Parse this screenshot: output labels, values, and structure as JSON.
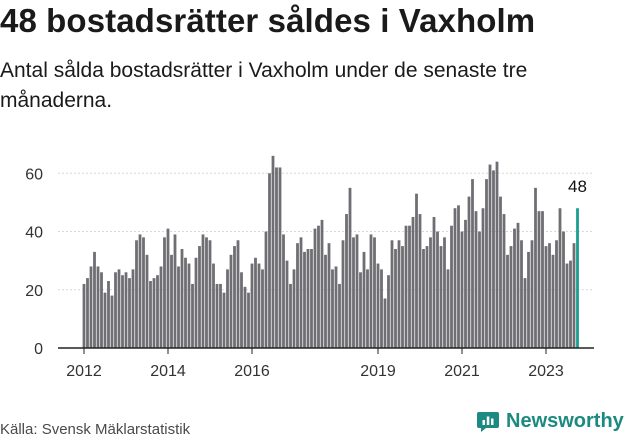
{
  "title": "48 bostadsrätter såldes i Vaxholm",
  "subtitle": "Antal sålda bostadsrätter i Vaxholm under de senaste tre månaderna.",
  "source": "Källa: Svensk Mäklarstatistik",
  "brand": {
    "name": "Newsworthy",
    "icon": "newsworthy-logo-icon"
  },
  "colors": {
    "bar": "#6f6e73",
    "highlight": "#1a9e8f",
    "grid": "#d8d8d8",
    "axis": "#222222"
  },
  "chart_data": {
    "type": "bar",
    "title": "48 bostadsrätter såldes i Vaxholm",
    "xlabel": "",
    "ylabel": "",
    "ylim": [
      0,
      68
    ],
    "yticks": [
      0,
      20,
      40,
      60
    ],
    "xticks": [
      {
        "label": "2012",
        "index": 0
      },
      {
        "label": "2014",
        "index": 24
      },
      {
        "label": "2016",
        "index": 48
      },
      {
        "label": "2019",
        "index": 84
      },
      {
        "label": "2021",
        "index": 108
      },
      {
        "label": "2023",
        "index": 132
      }
    ],
    "start": "2012-01",
    "period": "month",
    "values": [
      22,
      24,
      28,
      33,
      28,
      26,
      19,
      23,
      18,
      26,
      27,
      25,
      26,
      24,
      27,
      37,
      39,
      38,
      32,
      23,
      24,
      25,
      28,
      38,
      41,
      32,
      39,
      28,
      34,
      31,
      29,
      22,
      31,
      35,
      39,
      38,
      37,
      29,
      22,
      22,
      19,
      27,
      32,
      35,
      37,
      26,
      21,
      19,
      29,
      31,
      29,
      27,
      40,
      60,
      66,
      62,
      62,
      39,
      30,
      22,
      27,
      36,
      38,
      33,
      34,
      34,
      41,
      42,
      44,
      32,
      36,
      27,
      28,
      22,
      37,
      46,
      55,
      38,
      39,
      26,
      33,
      27,
      39,
      38,
      29,
      27,
      17,
      25,
      37,
      34,
      37,
      35,
      42,
      42,
      45,
      53,
      46,
      34,
      35,
      38,
      45,
      40,
      35,
      38,
      27,
      42,
      48,
      49,
      40,
      44,
      52,
      58,
      47,
      40,
      48,
      58,
      63,
      61,
      64,
      52,
      46,
      32,
      35,
      41,
      43,
      37,
      24,
      33,
      37,
      55,
      47,
      47,
      35,
      36,
      32,
      37,
      48,
      40,
      29,
      30,
      36,
      48
    ],
    "highlight": {
      "index": 141,
      "label": "48"
    }
  }
}
